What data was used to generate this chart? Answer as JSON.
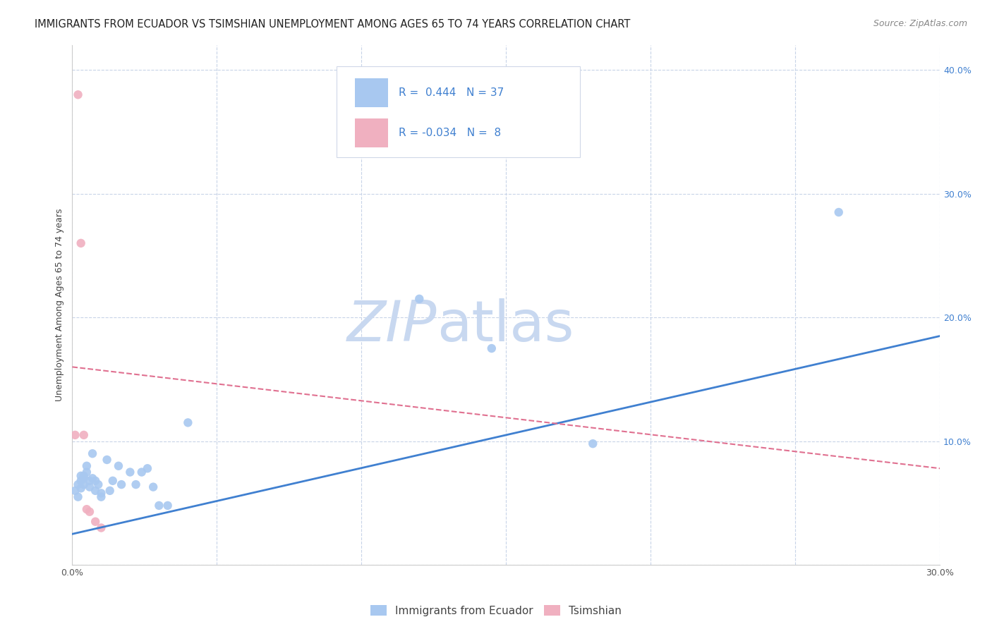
{
  "title": "IMMIGRANTS FROM ECUADOR VS TSIMSHIAN UNEMPLOYMENT AMONG AGES 65 TO 74 YEARS CORRELATION CHART",
  "source": "Source: ZipAtlas.com",
  "ylabel_label": "Unemployment Among Ages 65 to 74 years",
  "xlim": [
    0.0,
    0.3
  ],
  "ylim": [
    0.0,
    0.42
  ],
  "x_ticks": [
    0.0,
    0.05,
    0.1,
    0.15,
    0.2,
    0.25,
    0.3
  ],
  "y_ticks_right": [
    0.0,
    0.1,
    0.2,
    0.3,
    0.4
  ],
  "blue_color": "#a8c8f0",
  "pink_color": "#f0b0c0",
  "blue_line_color": "#4080d0",
  "pink_line_color": "#e07090",
  "grid_color": "#c8d4e8",
  "watermark_color": "#c8d8f0",
  "text_blue": "#4080d0",
  "legend_text_color": "#4080d0",
  "blue_scatter_x": [
    0.001,
    0.002,
    0.002,
    0.003,
    0.003,
    0.003,
    0.004,
    0.004,
    0.004,
    0.005,
    0.005,
    0.006,
    0.006,
    0.007,
    0.007,
    0.008,
    0.008,
    0.009,
    0.01,
    0.01,
    0.012,
    0.013,
    0.014,
    0.016,
    0.017,
    0.02,
    0.022,
    0.024,
    0.026,
    0.028,
    0.03,
    0.033,
    0.04,
    0.12,
    0.145,
    0.18,
    0.265
  ],
  "blue_scatter_y": [
    0.06,
    0.055,
    0.065,
    0.062,
    0.068,
    0.072,
    0.065,
    0.07,
    0.072,
    0.075,
    0.08,
    0.063,
    0.068,
    0.07,
    0.09,
    0.06,
    0.068,
    0.065,
    0.058,
    0.055,
    0.085,
    0.06,
    0.068,
    0.08,
    0.065,
    0.075,
    0.065,
    0.075,
    0.078,
    0.063,
    0.048,
    0.048,
    0.115,
    0.215,
    0.175,
    0.098,
    0.285
  ],
  "pink_scatter_x": [
    0.001,
    0.002,
    0.003,
    0.004,
    0.005,
    0.006,
    0.008,
    0.01
  ],
  "pink_scatter_y": [
    0.105,
    0.38,
    0.26,
    0.105,
    0.045,
    0.043,
    0.035,
    0.03
  ],
  "blue_trend_x": [
    0.0,
    0.3
  ],
  "blue_trend_y": [
    0.025,
    0.185
  ],
  "pink_trend_x": [
    0.0,
    0.3
  ],
  "pink_trend_y": [
    0.16,
    0.078
  ],
  "background_color": "#ffffff",
  "title_fontsize": 10.5,
  "source_fontsize": 9,
  "axis_label_fontsize": 9,
  "tick_fontsize": 9,
  "legend_fontsize": 11
}
